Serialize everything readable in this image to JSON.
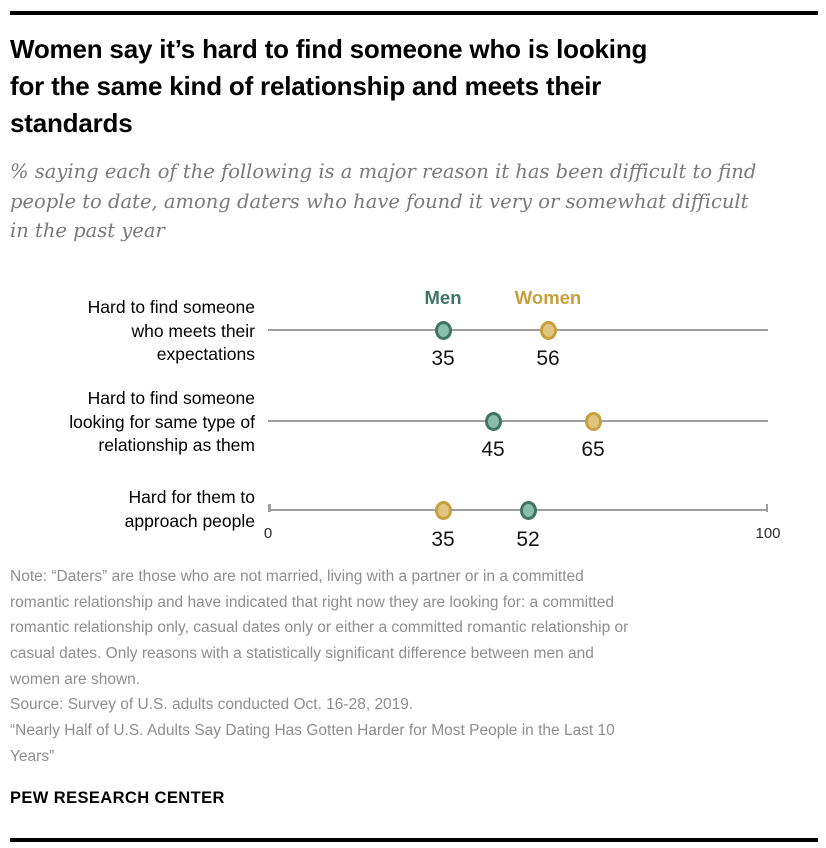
{
  "header": {
    "title": "Women say it’s hard to find someone who is looking\nfor the same kind of relationship and meets their\nstandards",
    "subtitle": "% saying each of the following is a major reason it has been difficult to find\npeople to date, among daters who have found it very or somewhat difficult\nin the past year"
  },
  "chart_data": {
    "type": "scatter",
    "variant": "dot-plot",
    "axis": {
      "min": 0,
      "max": 100,
      "tick_labels": {
        "min": "0",
        "max": "100"
      },
      "grid": false
    },
    "legend": {
      "position": "top",
      "entries": [
        {
          "name": "Men",
          "color": "#3e7565",
          "fill": "#8cbfab"
        },
        {
          "name": "Women",
          "color": "#c7a03c",
          "fill": "#dfc57f"
        }
      ]
    },
    "rows": [
      {
        "label": "Hard to find someone\nwho meets their\nexpectations",
        "men": 35,
        "women": 56
      },
      {
        "label": "Hard to find someone\nlooking for same type of\nrelationship as them",
        "men": 45,
        "women": 65
      },
      {
        "label": "Hard for them to\napproach people",
        "men": 52,
        "women": 35
      }
    ]
  },
  "footer": {
    "note": "Note: “Daters” are those who are not married, living with a partner or in a committed\nromantic relationship and have indicated that right now they are looking for: a committed\nromantic relationship only, casual dates only or either a committed romantic relationship or\ncasual dates. Only reasons with a statistically significant difference between men and\nwomen are shown.",
    "source": "Source: Survey of U.S. adults conducted Oct. 16-28, 2019.",
    "report_title": "“Nearly Half of U.S. Adults Say Dating Has Gotten Harder for Most People in the Last 10\nYears”",
    "brand": "PEW RESEARCH CENTER"
  },
  "colors": {
    "men": "#3e7565",
    "men_fill": "#8cbfab",
    "women": "#c7a03c",
    "women_fill": "#dfc57f",
    "track": "#9e9e9e",
    "rule": "#000000"
  }
}
